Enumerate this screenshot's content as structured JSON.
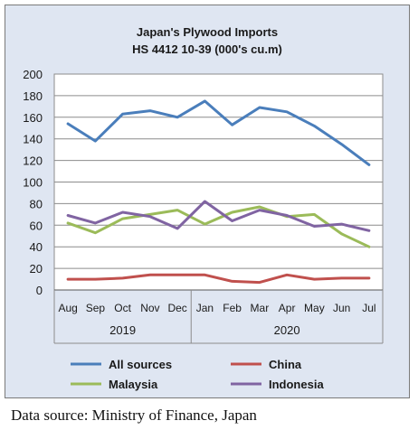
{
  "chart_data": {
    "type": "line",
    "title": "Japan's Plywood Imports",
    "subtitle": "HS 4412 10-39  (000's cu.m)",
    "categories": [
      "Aug",
      "Sep",
      "Oct",
      "Nov",
      "Dec",
      "Jan",
      "Feb",
      "Mar",
      "Apr",
      "May",
      "Jun",
      "Jul"
    ],
    "year_groups": [
      {
        "label": "2019",
        "count": 5
      },
      {
        "label": "2020",
        "count": 7
      }
    ],
    "ylim": [
      0,
      200
    ],
    "yticks": [
      "0",
      "20",
      "40",
      "60",
      "80",
      "100",
      "120",
      "140",
      "160",
      "180",
      "200"
    ],
    "grid": true,
    "legend_position": "bottom",
    "series": [
      {
        "name": "All sources",
        "color": "#4a7ebb",
        "values": [
          154,
          138,
          163,
          166,
          160,
          175,
          153,
          169,
          165,
          152,
          135,
          116
        ]
      },
      {
        "name": "China",
        "color": "#c0504d",
        "values": [
          10,
          10,
          11,
          14,
          14,
          14,
          8,
          7,
          14,
          10,
          11,
          11
        ]
      },
      {
        "name": "Malaysia",
        "color": "#9bbb59",
        "values": [
          62,
          53,
          66,
          70,
          74,
          61,
          72,
          77,
          68,
          70,
          52,
          40
        ]
      },
      {
        "name": "Indonesia",
        "color": "#8064a2",
        "values": [
          69,
          62,
          72,
          68,
          57,
          82,
          64,
          74,
          69,
          59,
          61,
          55
        ]
      }
    ]
  },
  "footer": {
    "source": "Data source: Ministry of Finance, Japan"
  }
}
